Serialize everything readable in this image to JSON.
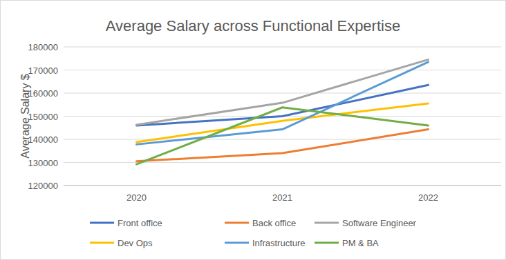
{
  "chart_data": {
    "type": "line",
    "title": "Average Salary across Functional Expertise",
    "y_label": "Average Salary $",
    "categories": [
      "2020",
      "2021",
      "2022"
    ],
    "series": [
      {
        "name": "Front office",
        "color": "#4472c4",
        "values": [
          146000,
          150000,
          163500
        ]
      },
      {
        "name": "Back office",
        "color": "#ed7d31",
        "values": [
          130500,
          134000,
          144300
        ]
      },
      {
        "name": "Software Engineer",
        "color": "#a5a5a5",
        "values": [
          146300,
          155800,
          174500
        ]
      },
      {
        "name": "Dev Ops",
        "color": "#ffc000",
        "values": [
          138800,
          148000,
          155500
        ]
      },
      {
        "name": "Infrastructure",
        "color": "#5b9bd5",
        "values": [
          137800,
          144300,
          173500
        ]
      },
      {
        "name": "PM & BA",
        "color": "#70ad47",
        "values": [
          129200,
          153800,
          146000
        ]
      }
    ],
    "ylim": [
      120000,
      180000
    ],
    "yticks": [
      120000,
      130000,
      140000,
      150000,
      160000,
      170000,
      180000
    ],
    "grid": true,
    "legend": "bottom"
  }
}
